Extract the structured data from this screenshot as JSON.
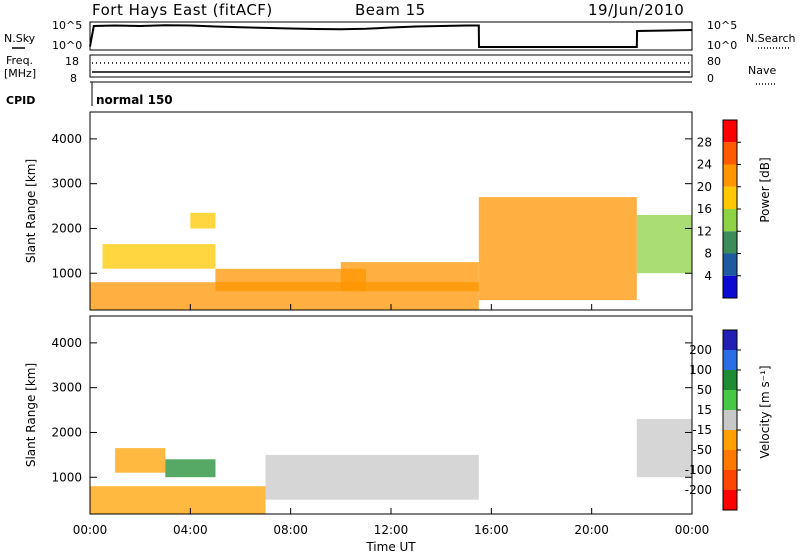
{
  "header": {
    "station": "Fort Hays East (fitACF)",
    "beam": "Beam 15",
    "date": "19/Jun/2010"
  },
  "strip": {
    "nsky_label": "N.Sky",
    "nsearch_label": "N.Search",
    "noise_ticks": [
      "10^5",
      "10^0"
    ],
    "freq_label": "Freq.",
    "freq_unit": "[MHz]",
    "freq_ticks": [
      "18",
      "8"
    ],
    "nave_label": "Nave",
    "nave_ticks": [
      "80",
      "0"
    ],
    "cpid_label": "CPID",
    "cpid_value": "normal 150"
  },
  "panels": {
    "power": {
      "ylabel": "Slant Range [km]",
      "cbar_label": "Power [dB]",
      "cbar_ticks": [
        "28",
        "24",
        "20",
        "16",
        "12",
        "8",
        "4"
      ],
      "cbar_colors": [
        "#ff0000",
        "#ff5a00",
        "#ff9600",
        "#ffc800",
        "#8ed246",
        "#3c8c5a",
        "#1e5aa0",
        "#0a0ad2"
      ]
    },
    "velocity": {
      "ylabel": "Slant Range [km]",
      "cbar_label": "Velocity [m s⁻¹]",
      "cbar_ticks": [
        "200",
        "100",
        "50",
        "15",
        "-15",
        "-50",
        "-100",
        "-200"
      ],
      "cbar_colors": [
        "#2020b4",
        "#2a6ee6",
        "#1e8c32",
        "#46c846",
        "#c8c8c8",
        "#ffa000",
        "#ff7800",
        "#ff4600",
        "#ff0000"
      ]
    },
    "y_ticks": [
      "1000",
      "2000",
      "3000",
      "4000"
    ]
  },
  "time_axis": {
    "xlabel": "Time UT",
    "ticks": [
      "00:00",
      "04:00",
      "08:00",
      "12:00",
      "16:00",
      "20:00",
      "00:00"
    ]
  },
  "chart_data": [
    {
      "type": "line",
      "title": "N.Sky",
      "x_range_hours": [
        0,
        24
      ],
      "y_scale": "log",
      "ylim": [
        "10^0",
        "10^5"
      ],
      "x": [
        0,
        0.15,
        1,
        2,
        3,
        4,
        5,
        6,
        8,
        9,
        10,
        11,
        12,
        13,
        14,
        15,
        15.5,
        15.51,
        21.8,
        21.81,
        23,
        24
      ],
      "values": [
        0.5,
        4.6,
        4.7,
        4.6,
        4.75,
        4.7,
        4.5,
        4.35,
        4.1,
        4.0,
        3.95,
        4.05,
        4.3,
        4.5,
        4.6,
        4.7,
        4.7,
        0.4,
        0.4,
        3.6,
        3.7,
        3.8
      ]
    },
    {
      "type": "heatmap",
      "title": "Power [dB]",
      "xlabel": "Time UT",
      "ylabel": "Slant Range [km]",
      "x_range_hours": [
        0,
        24
      ],
      "ylim": [
        180,
        4600
      ],
      "color_range": [
        0,
        32
      ],
      "regions": [
        {
          "x": [
            0,
            15.5
          ],
          "y": [
            180,
            800
          ],
          "level": 20
        },
        {
          "x": [
            0.5,
            5
          ],
          "y": [
            1100,
            1650
          ],
          "level": 16
        },
        {
          "x": [
            5,
            11
          ],
          "y": [
            600,
            1100
          ],
          "level": 20
        },
        {
          "x": [
            10,
            15.5
          ],
          "y": [
            600,
            1250
          ],
          "level": 20
        },
        {
          "x": [
            4,
            5
          ],
          "y": [
            2000,
            2350
          ],
          "level": 14
        },
        {
          "x": [
            15.5,
            21.8
          ],
          "y": [
            400,
            2700
          ],
          "level": 18
        },
        {
          "x": [
            21.8,
            24
          ],
          "y": [
            1000,
            2300
          ],
          "level": 12
        }
      ]
    },
    {
      "type": "heatmap",
      "title": "Velocity [m s⁻¹]",
      "xlabel": "Time UT",
      "ylabel": "Slant Range [km]",
      "x_range_hours": [
        0,
        24
      ],
      "ylim": [
        180,
        4600
      ],
      "color_range": [
        -200,
        200
      ],
      "regions": [
        {
          "x": [
            0,
            7
          ],
          "y": [
            180,
            800
          ],
          "level": -50
        },
        {
          "x": [
            1,
            3
          ],
          "y": [
            1100,
            1650
          ],
          "level": -50
        },
        {
          "x": [
            3,
            5
          ],
          "y": [
            1000,
            1400
          ],
          "level": 50
        },
        {
          "x": [
            7,
            15.5
          ],
          "y": [
            500,
            1500
          ],
          "level": 0
        },
        {
          "x": [
            21.8,
            24
          ],
          "y": [
            1000,
            2300
          ],
          "level": -15
        }
      ]
    }
  ]
}
